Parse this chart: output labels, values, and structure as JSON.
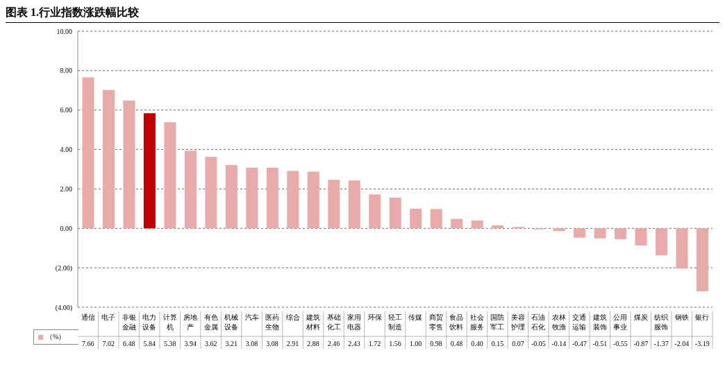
{
  "chart_data": {
    "type": "bar",
    "title": "图表 1.行业指数涨跌幅比较",
    "categories": [
      "通信",
      "电子",
      "非银金融",
      "电力设备",
      "计算机",
      "房地产",
      "有色金属",
      "机械设备",
      "汽车",
      "医药生物",
      "综合",
      "建筑材料",
      "基础化工",
      "家用电器",
      "环保",
      "轻工制造",
      "传媒",
      "商贸零售",
      "食品饮料",
      "社会服务",
      "国防军工",
      "美容护理",
      "石油石化",
      "农林牧渔",
      "交通运输",
      "建筑装饰",
      "公用事业",
      "煤炭",
      "纺织服饰",
      "钢铁",
      "银行"
    ],
    "series": [
      {
        "name": "（%）",
        "color": "#e9aaaa",
        "values": [
          7.66,
          7.02,
          6.48,
          5.84,
          5.38,
          3.94,
          3.62,
          3.21,
          3.08,
          3.08,
          2.91,
          2.88,
          2.46,
          2.43,
          1.72,
          1.56,
          1.0,
          0.98,
          0.48,
          0.4,
          0.15,
          0.07,
          -0.05,
          -0.14,
          -0.47,
          -0.51,
          -0.55,
          -0.87,
          -1.37,
          -2.04,
          -3.19
        ],
        "colors": [
          "#e9aaaa",
          "#e9aaaa",
          "#e9aaaa",
          "#c00000",
          "#e9aaaa",
          "#e9aaaa",
          "#e9aaaa",
          "#e9aaaa",
          "#e9aaaa",
          "#e9aaaa",
          "#e9aaaa",
          "#e9aaaa",
          "#e9aaaa",
          "#e9aaaa",
          "#e9aaaa",
          "#e9aaaa",
          "#e9aaaa",
          "#e9aaaa",
          "#e9aaaa",
          "#e9aaaa",
          "#e9aaaa",
          "#e9aaaa",
          "#e9aaaa",
          "#e9aaaa",
          "#e9aaaa",
          "#e9aaaa",
          "#e9aaaa",
          "#e9aaaa",
          "#e9aaaa",
          "#e9aaaa",
          "#e9aaaa"
        ],
        "value_labels": [
          "7.66",
          "7.02",
          "6.48",
          "5.84",
          "5.38",
          "3.94",
          "3.62",
          "3.21",
          "3.08",
          "3.08",
          "2.91",
          "2.88",
          "2.46",
          "2.43",
          "1.72",
          "1.56",
          "1.00",
          "0.98",
          "0.48",
          "0.40",
          "0.15",
          "0.07",
          "-0.05",
          "-0.14",
          "-0.47",
          "-0.51",
          "-0.55",
          "-0.87",
          "-1.37",
          "-2.04",
          "-3.19"
        ]
      }
    ],
    "ylim": [
      -4,
      10
    ],
    "yticks": [
      {
        "value": -4,
        "label": "(4.00)"
      },
      {
        "value": -2,
        "label": "(2.00)"
      },
      {
        "value": 0,
        "label": "0.00"
      },
      {
        "value": 2,
        "label": "2.00"
      },
      {
        "value": 4,
        "label": "4.00"
      },
      {
        "value": 6,
        "label": "6.00"
      },
      {
        "value": 8,
        "label": "8.00"
      },
      {
        "value": 10,
        "label": "10.00"
      }
    ],
    "grid": "y",
    "legend": "bottom left"
  }
}
